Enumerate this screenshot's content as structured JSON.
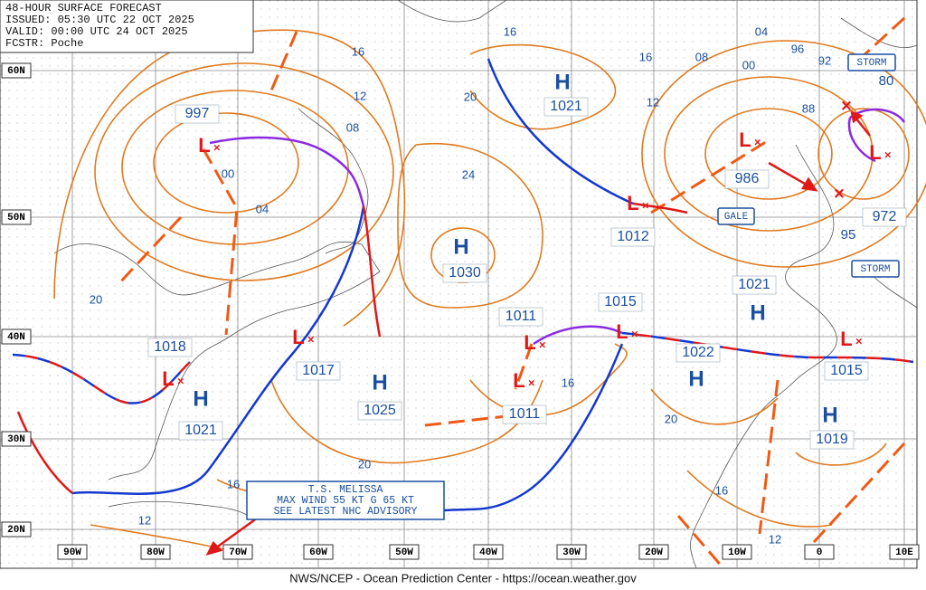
{
  "header": {
    "lines": [
      "48-HOUR SURFACE FORECAST",
      "ISSUED: 05:30 UTC 22 OCT 2025",
      "VALID: 00:00 UTC 24 OCT 2025",
      "FCSTR: Poche"
    ]
  },
  "latitude_labels": [
    "60N",
    "50N",
    "40N",
    "30N",
    "20N"
  ],
  "longitude_labels": [
    "90W",
    "80W",
    "70W",
    "60W",
    "50W",
    "40W",
    "30W",
    "20W",
    "10W",
    "0",
    "10E"
  ],
  "pressure_centers": [
    {
      "symbol": "L",
      "pressure": "997"
    },
    {
      "symbol": "H",
      "pressure": "1021"
    },
    {
      "symbol": "H",
      "pressure": "1030"
    },
    {
      "symbol": "L",
      "pressure": "986"
    },
    {
      "symbol": "L",
      "pressure": "972"
    },
    {
      "symbol": "L",
      "pressure": "1012"
    },
    {
      "symbol": "L",
      "pressure": "1018"
    },
    {
      "symbol": "H",
      "pressure": "1021"
    },
    {
      "symbol": "L",
      "pressure": "1017"
    },
    {
      "symbol": "H",
      "pressure": "1025"
    },
    {
      "symbol": "L",
      "pressure": "1011"
    },
    {
      "symbol": "L",
      "pressure": "1011"
    },
    {
      "symbol": "L",
      "pressure": "1015"
    },
    {
      "symbol": "H",
      "pressure": "1022"
    },
    {
      "symbol": "H",
      "pressure": "1021"
    },
    {
      "symbol": "L",
      "pressure": "1015"
    },
    {
      "symbol": "H",
      "pressure": "1019"
    }
  ],
  "isobar_labels": [
    "16",
    "12",
    "08",
    "00",
    "04",
    "20",
    "16",
    "20",
    "24",
    "16",
    "12",
    "08",
    "04",
    "00",
    "96",
    "92",
    "88",
    "80",
    "95",
    "16",
    "20",
    "20",
    "16",
    "12",
    "16",
    "12"
  ],
  "warning_labels": [
    "STORM",
    "GALE",
    "STORM"
  ],
  "advisory": {
    "lines": [
      "T.S. MELISSA",
      "MAX WIND 55 KT G 65 KT",
      "SEE LATEST NHC ADVISORY"
    ]
  },
  "footer": "NWS/NCEP - Ocean Prediction Center - https://ocean.weather.gov"
}
